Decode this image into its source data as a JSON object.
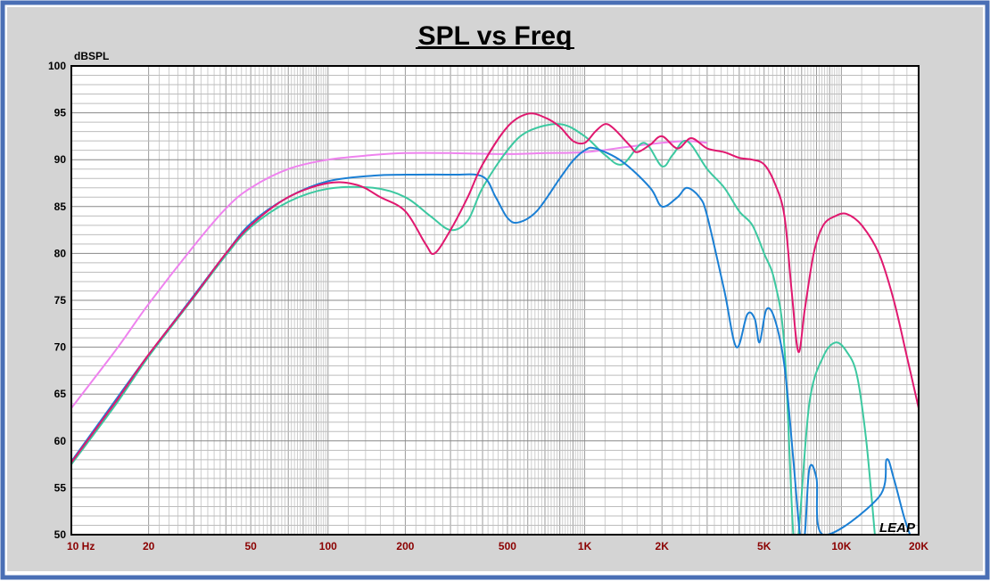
{
  "chart_data": {
    "type": "line",
    "title": "SPL vs Freq",
    "ylabel": "dBSPL",
    "xscale": "log",
    "xlim": [
      10,
      20000
    ],
    "ylim": [
      50,
      100
    ],
    "yticks": [
      50,
      55,
      60,
      65,
      70,
      75,
      80,
      85,
      90,
      95,
      100
    ],
    "xticks": [
      {
        "value": 10,
        "label": "10  Hz"
      },
      {
        "value": 20,
        "label": "20"
      },
      {
        "value": 50,
        "label": "50"
      },
      {
        "value": 100,
        "label": "100"
      },
      {
        "value": 200,
        "label": "200"
      },
      {
        "value": 500,
        "label": "500"
      },
      {
        "value": 1000,
        "label": "1K"
      },
      {
        "value": 2000,
        "label": "2K"
      },
      {
        "value": 5000,
        "label": "5K"
      },
      {
        "value": 10000,
        "label": "10K"
      },
      {
        "value": 20000,
        "label": "20K"
      }
    ],
    "grid": true,
    "watermark": "LEAP",
    "series": [
      {
        "color": "#ee82ee",
        "points": [
          [
            10,
            63.5
          ],
          [
            15,
            69.8
          ],
          [
            20,
            74.6
          ],
          [
            30,
            80.8
          ],
          [
            40,
            84.8
          ],
          [
            50,
            87.0
          ],
          [
            70,
            89.0
          ],
          [
            100,
            90.0
          ],
          [
            150,
            90.5
          ],
          [
            200,
            90.7
          ],
          [
            300,
            90.7
          ],
          [
            500,
            90.6
          ],
          [
            700,
            90.7
          ],
          [
            1000,
            90.8
          ],
          [
            1500,
            91.4
          ],
          [
            2000,
            91.8
          ],
          [
            2500,
            92.0
          ],
          [
            3000,
            91.8
          ]
        ]
      },
      {
        "color": "#3cc8a0",
        "points": [
          [
            10,
            57.5
          ],
          [
            15,
            64.0
          ],
          [
            20,
            69.0
          ],
          [
            30,
            75.3
          ],
          [
            40,
            79.8
          ],
          [
            50,
            82.8
          ],
          [
            70,
            85.5
          ],
          [
            100,
            86.9
          ],
          [
            150,
            87.0
          ],
          [
            200,
            86.0
          ],
          [
            250,
            84.0
          ],
          [
            300,
            82.5
          ],
          [
            350,
            83.5
          ],
          [
            400,
            87.0
          ],
          [
            500,
            91.0
          ],
          [
            600,
            93.0
          ],
          [
            800,
            93.8
          ],
          [
            1000,
            92.5
          ],
          [
            1200,
            90.5
          ],
          [
            1400,
            89.5
          ],
          [
            1700,
            91.8
          ],
          [
            2000,
            89.3
          ],
          [
            2200,
            90.5
          ],
          [
            2500,
            92.0
          ],
          [
            3000,
            89.0
          ],
          [
            3500,
            87.0
          ],
          [
            4000,
            84.5
          ],
          [
            4500,
            83.0
          ],
          [
            5000,
            80.0
          ],
          [
            5500,
            77.0
          ],
          [
            6000,
            70.0
          ],
          [
            6500,
            50.0
          ],
          [
            6800,
            50.0
          ],
          [
            7500,
            64.0
          ],
          [
            8500,
            69.0
          ],
          [
            9500,
            70.5
          ],
          [
            10500,
            69.5
          ],
          [
            11500,
            67.0
          ],
          [
            12500,
            60.0
          ],
          [
            13500,
            50.0
          ]
        ]
      },
      {
        "color": "#1a7fd4",
        "points": [
          [
            10,
            57.8
          ],
          [
            15,
            64.5
          ],
          [
            20,
            69.2
          ],
          [
            30,
            75.5
          ],
          [
            40,
            80.0
          ],
          [
            50,
            83.2
          ],
          [
            70,
            86.0
          ],
          [
            100,
            87.7
          ],
          [
            150,
            88.3
          ],
          [
            200,
            88.4
          ],
          [
            300,
            88.4
          ],
          [
            400,
            88.2
          ],
          [
            450,
            86.0
          ],
          [
            500,
            83.8
          ],
          [
            550,
            83.3
          ],
          [
            650,
            84.5
          ],
          [
            800,
            88.0
          ],
          [
            900,
            89.9
          ],
          [
            1000,
            91.0
          ],
          [
            1100,
            91.2
          ],
          [
            1400,
            89.8
          ],
          [
            1800,
            87.0
          ],
          [
            2000,
            85.0
          ],
          [
            2300,
            86.0
          ],
          [
            2500,
            87.0
          ],
          [
            2800,
            86.0
          ],
          [
            3000,
            84.0
          ],
          [
            3500,
            76.0
          ],
          [
            3900,
            70.0
          ],
          [
            4300,
            73.5
          ],
          [
            4600,
            73.0
          ],
          [
            4800,
            70.5
          ],
          [
            5100,
            74.0
          ],
          [
            5500,
            73.0
          ],
          [
            6000,
            68.0
          ],
          [
            6500,
            58.0
          ],
          [
            6900,
            50.0
          ],
          [
            7200,
            50.0
          ],
          [
            7500,
            57.0
          ],
          [
            8000,
            56.0
          ],
          [
            8500,
            50.0
          ],
          [
            14000,
            54.0
          ],
          [
            15000,
            58.0
          ],
          [
            16000,
            56.0
          ],
          [
            17500,
            52.0
          ],
          [
            18500,
            50.0
          ]
        ]
      },
      {
        "color": "#e0186f",
        "points": [
          [
            10,
            57.7
          ],
          [
            15,
            64.3
          ],
          [
            20,
            69.2
          ],
          [
            30,
            75.4
          ],
          [
            40,
            80.0
          ],
          [
            50,
            83.0
          ],
          [
            70,
            86.0
          ],
          [
            100,
            87.5
          ],
          [
            130,
            87.3
          ],
          [
            160,
            86.0
          ],
          [
            200,
            84.5
          ],
          [
            240,
            81.0
          ],
          [
            260,
            80.0
          ],
          [
            300,
            82.5
          ],
          [
            350,
            86.0
          ],
          [
            400,
            89.5
          ],
          [
            500,
            93.5
          ],
          [
            600,
            94.9
          ],
          [
            700,
            94.5
          ],
          [
            800,
            93.5
          ],
          [
            900,
            92.0
          ],
          [
            1000,
            91.8
          ],
          [
            1100,
            93.0
          ],
          [
            1200,
            93.8
          ],
          [
            1300,
            93.3
          ],
          [
            1500,
            91.5
          ],
          [
            1600,
            90.8
          ],
          [
            1800,
            91.6
          ],
          [
            2000,
            92.5
          ],
          [
            2300,
            91.2
          ],
          [
            2600,
            92.3
          ],
          [
            3000,
            91.2
          ],
          [
            3500,
            90.8
          ],
          [
            4000,
            90.2
          ],
          [
            4500,
            90.0
          ],
          [
            5000,
            89.5
          ],
          [
            5500,
            87.5
          ],
          [
            6000,
            84.0
          ],
          [
            6400,
            76.0
          ],
          [
            6800,
            69.5
          ],
          [
            7200,
            74.0
          ],
          [
            7800,
            80.0
          ],
          [
            8500,
            83.0
          ],
          [
            9500,
            84.0
          ],
          [
            10500,
            84.2
          ],
          [
            12000,
            83.0
          ],
          [
            14000,
            80.0
          ],
          [
            16000,
            75.0
          ],
          [
            18000,
            69.0
          ],
          [
            20000,
            63.5
          ]
        ]
      }
    ]
  }
}
